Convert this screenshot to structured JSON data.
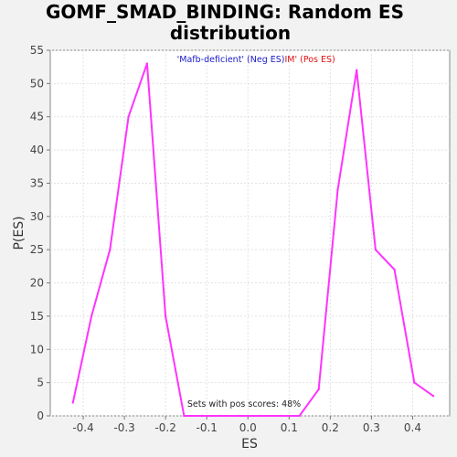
{
  "chart_data": {
    "type": "line",
    "title_line1": "GOMF_SMAD_BINDING: Random ES",
    "title_line2": "distribution",
    "xlabel": "ES",
    "ylabel": "P(ES)",
    "xlim": [
      -0.48,
      0.49
    ],
    "ylim": [
      0,
      55
    ],
    "xticks": [
      -0.4,
      -0.3,
      -0.2,
      -0.1,
      0.0,
      0.1,
      0.2,
      0.3,
      0.4
    ],
    "xtick_labels": [
      "-0.4",
      "-0.3",
      "-0.2",
      "-0.1",
      "0.0",
      "0.1",
      "0.2",
      "0.3",
      "0.4"
    ],
    "yticks": [
      0,
      5,
      10,
      15,
      20,
      25,
      30,
      35,
      40,
      45,
      50,
      55
    ],
    "ytick_labels": [
      "0",
      "5",
      "10",
      "15",
      "20",
      "25",
      "30",
      "35",
      "40",
      "45",
      "50",
      "55"
    ],
    "grid": true,
    "legend": {
      "neg_label": "'Mafb-deficient' (Neg ES)",
      "pos_label": "IM' (Pos ES)",
      "neg_color": "#1a1acc",
      "pos_color": "#e01010"
    },
    "annotation": "Sets with pos scores: 48%",
    "line_color": "#ff33ff",
    "series": [
      {
        "x": [
          -0.425,
          -0.38,
          -0.335,
          -0.29,
          -0.245,
          -0.2,
          -0.155,
          -0.11,
          -0.065,
          -0.02,
          0.03,
          0.08,
          0.125,
          0.172,
          0.218,
          0.264,
          0.31,
          0.356,
          0.404,
          0.45
        ],
        "y": [
          2,
          15,
          25,
          45,
          53,
          15,
          0,
          0,
          0,
          0,
          0,
          0,
          0,
          4,
          34,
          52,
          25,
          22,
          5,
          3
        ]
      }
    ]
  }
}
